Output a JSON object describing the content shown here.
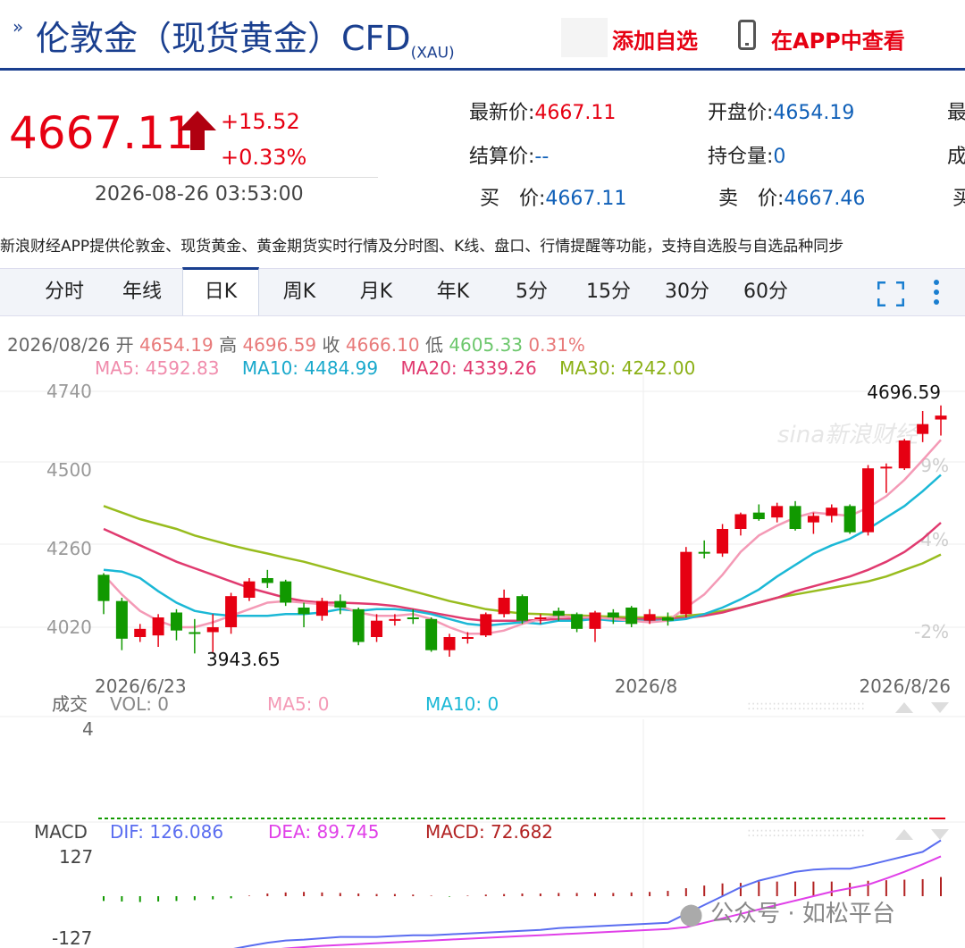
{
  "header": {
    "title": "伦敦金（现货黄金）CFD",
    "title_sub": "(XAU)",
    "add_label": "添加自选",
    "app_label": "在APP中查看"
  },
  "quote": {
    "price": "4667.11",
    "change": "+15.52",
    "change_pct": "+0.33%",
    "time": "2026-08-26 03:53:00",
    "fields": [
      {
        "k": "最新价:",
        "v": "4667.11",
        "red": true
      },
      {
        "k": "开盘价:",
        "v": "4654.19",
        "red": false
      },
      {
        "k": "最",
        "v": "",
        "red": false
      },
      {
        "k": "结算价:",
        "v": "--",
        "red": false
      },
      {
        "k": "持仓量:",
        "v": "0",
        "red": false
      },
      {
        "k": "成",
        "v": "",
        "red": false
      },
      {
        "k": "买　价:",
        "v": "4667.11",
        "red": false
      },
      {
        "k": "卖　价:",
        "v": "4667.46",
        "red": false
      },
      {
        "k": "买",
        "v": "",
        "red": false
      }
    ]
  },
  "promo": "新浪财经APP提供伦敦金、现货黄金、黄金期货实时行情及分时图、K线、盘口、行情提醒等功能，支持自选股与自选品种同步",
  "tabs": [
    "分时",
    "年线",
    "日K",
    "周K",
    "月K",
    "年K",
    "5分",
    "15分",
    "30分",
    "60分"
  ],
  "active_tab": "日K",
  "kline_info": {
    "date": "2026/08/26",
    "open_label": "开",
    "open": "4654.19",
    "high_label": "高",
    "high": "4696.59",
    "close_label": "收",
    "close": "4666.10",
    "low_label": "低",
    "low": "4605.33",
    "pct": "0.31%",
    "ma5": "MA5: 4592.83",
    "ma10": "MA10: 4484.99",
    "ma20": "MA20: 4339.26",
    "ma30": "MA30: 4242.00"
  },
  "chart_data": {
    "type": "candlestick",
    "y_ticks": [
      "4740",
      "4500",
      "4260",
      "4020"
    ],
    "right_ticks": [
      "9%",
      "4%",
      "-2%"
    ],
    "x_labels": [
      "2026/6/23",
      "2026/8",
      "2026/8/26"
    ],
    "high_label": "4696.59",
    "low_label": "3943.65",
    "candles": [
      {
        "o": 4180,
        "c": 4100,
        "h": 4185,
        "l": 4060
      },
      {
        "o": 4100,
        "c": 3985,
        "h": 4110,
        "l": 3950
      },
      {
        "o": 3990,
        "c": 4015,
        "h": 4030,
        "l": 3975
      },
      {
        "o": 3995,
        "c": 4050,
        "h": 4060,
        "l": 3960
      },
      {
        "o": 4065,
        "c": 4010,
        "h": 4075,
        "l": 3980
      },
      {
        "o": 4005,
        "c": 4000,
        "h": 4045,
        "l": 3940
      },
      {
        "o": 4005,
        "c": 4020,
        "h": 4060,
        "l": 3944
      },
      {
        "o": 4020,
        "c": 4115,
        "h": 4125,
        "l": 4000
      },
      {
        "o": 4110,
        "c": 4160,
        "h": 4170,
        "l": 4100
      },
      {
        "o": 4170,
        "c": 4155,
        "h": 4195,
        "l": 4140
      },
      {
        "o": 4160,
        "c": 4095,
        "h": 4165,
        "l": 4085
      },
      {
        "o": 4080,
        "c": 4060,
        "h": 4095,
        "l": 4020
      },
      {
        "o": 4055,
        "c": 4100,
        "h": 4110,
        "l": 4040
      },
      {
        "o": 4100,
        "c": 4080,
        "h": 4120,
        "l": 4060
      },
      {
        "o": 4075,
        "c": 3975,
        "h": 4080,
        "l": 3965
      },
      {
        "o": 3990,
        "c": 4040,
        "h": 4060,
        "l": 3975
      },
      {
        "o": 4045,
        "c": 4045,
        "h": 4060,
        "l": 4025
      },
      {
        "o": 4050,
        "c": 4045,
        "h": 4075,
        "l": 4030
      },
      {
        "o": 4045,
        "c": 3950,
        "h": 4050,
        "l": 3945
      },
      {
        "o": 3950,
        "c": 3990,
        "h": 4000,
        "l": 3930
      },
      {
        "o": 3990,
        "c": 3990,
        "h": 4005,
        "l": 3970
      },
      {
        "o": 3995,
        "c": 4060,
        "h": 4065,
        "l": 3990
      },
      {
        "o": 4060,
        "c": 4110,
        "h": 4135,
        "l": 4050
      },
      {
        "o": 4115,
        "c": 4040,
        "h": 4120,
        "l": 4030
      },
      {
        "o": 4045,
        "c": 4050,
        "h": 4060,
        "l": 4030
      },
      {
        "o": 4070,
        "c": 4055,
        "h": 4080,
        "l": 4040
      },
      {
        "o": 4060,
        "c": 4015,
        "h": 4065,
        "l": 4005
      },
      {
        "o": 4015,
        "c": 4065,
        "h": 4070,
        "l": 3975
      },
      {
        "o": 4065,
        "c": 4050,
        "h": 4075,
        "l": 4030
      },
      {
        "o": 4080,
        "c": 4030,
        "h": 4085,
        "l": 4020
      },
      {
        "o": 4040,
        "c": 4060,
        "h": 4075,
        "l": 4030
      },
      {
        "o": 4050,
        "c": 4040,
        "h": 4065,
        "l": 4025
      },
      {
        "o": 4060,
        "c": 4250,
        "h": 4265,
        "l": 4050
      },
      {
        "o": 4250,
        "c": 4245,
        "h": 4285,
        "l": 4230
      },
      {
        "o": 4245,
        "c": 4320,
        "h": 4335,
        "l": 4235
      },
      {
        "o": 4320,
        "c": 4365,
        "h": 4370,
        "l": 4300
      },
      {
        "o": 4370,
        "c": 4350,
        "h": 4395,
        "l": 4345
      },
      {
        "o": 4355,
        "c": 4390,
        "h": 4400,
        "l": 4340
      },
      {
        "o": 4390,
        "c": 4320,
        "h": 4405,
        "l": 4315
      },
      {
        "o": 4340,
        "c": 4360,
        "h": 4370,
        "l": 4305
      },
      {
        "o": 4360,
        "c": 4385,
        "h": 4395,
        "l": 4340
      },
      {
        "o": 4390,
        "c": 4310,
        "h": 4395,
        "l": 4305
      },
      {
        "o": 4310,
        "c": 4505,
        "h": 4515,
        "l": 4300
      },
      {
        "o": 4505,
        "c": 4510,
        "h": 4520,
        "l": 4430
      },
      {
        "o": 4505,
        "c": 4590,
        "h": 4595,
        "l": 4500
      },
      {
        "o": 4610,
        "c": 4640,
        "h": 4680,
        "l": 4585
      },
      {
        "o": 4654,
        "c": 4666,
        "h": 4697,
        "l": 4605
      }
    ],
    "ma5": [
      4180,
      4120,
      4070,
      4040,
      4020,
      4020,
      4035,
      4055,
      4075,
      4095,
      4100,
      4095,
      4090,
      4085,
      4065,
      4055,
      4055,
      4060,
      4045,
      4020,
      4000,
      4000,
      4010,
      4030,
      4045,
      4055,
      4050,
      4050,
      4045,
      4040,
      4035,
      4040,
      4080,
      4120,
      4180,
      4250,
      4300,
      4330,
      4355,
      4370,
      4365,
      4360,
      4385,
      4420,
      4470,
      4530,
      4592
    ],
    "ma10": [
      4195,
      4190,
      4170,
      4130,
      4095,
      4070,
      4060,
      4055,
      4055,
      4055,
      4060,
      4060,
      4065,
      4075,
      4070,
      4075,
      4075,
      4070,
      4060,
      4045,
      4030,
      4025,
      4030,
      4035,
      4030,
      4040,
      4040,
      4045,
      4040,
      4040,
      4040,
      4040,
      4045,
      4060,
      4080,
      4105,
      4135,
      4175,
      4210,
      4245,
      4270,
      4290,
      4320,
      4355,
      4390,
      4435,
      4485
    ],
    "ma20": [
      4320,
      4295,
      4270,
      4245,
      4220,
      4200,
      4180,
      4160,
      4140,
      4125,
      4110,
      4100,
      4095,
      4095,
      4093,
      4090,
      4085,
      4075,
      4065,
      4055,
      4045,
      4040,
      4040,
      4040,
      4042,
      4045,
      4045,
      4045,
      4045,
      4045,
      4045,
      4045,
      4048,
      4055,
      4065,
      4080,
      4095,
      4110,
      4130,
      4145,
      4160,
      4175,
      4195,
      4220,
      4250,
      4290,
      4339
    ],
    "ma30": [
      4390,
      4370,
      4350,
      4335,
      4320,
      4300,
      4285,
      4270,
      4257,
      4245,
      4232,
      4220,
      4205,
      4190,
      4175,
      4160,
      4145,
      4130,
      4115,
      4100,
      4088,
      4075,
      4068,
      4062,
      4060,
      4058,
      4056,
      4054,
      4052,
      4050,
      4050,
      4050,
      4055,
      4060,
      4070,
      4080,
      4095,
      4110,
      4120,
      4130,
      4140,
      4150,
      4160,
      4175,
      4195,
      4215,
      4242
    ],
    "volume": {
      "label": "成交",
      "vol": "VOL: 0",
      "ma5": "MA5: 0",
      "ma10": "MA10: 0",
      "y_tick": "4"
    },
    "macd": {
      "label": "MACD",
      "dif": "DIF: 126.086",
      "dea": "DEA: 89.745",
      "macd": "MACD: 72.682",
      "y_ticks": [
        "127",
        "-127"
      ],
      "hist": [
        -18,
        -20,
        -22,
        -20,
        -18,
        -15,
        -12,
        -8,
        2,
        10,
        14,
        16,
        14,
        12,
        10,
        8,
        8,
        6,
        2,
        -2,
        2,
        6,
        8,
        10,
        10,
        12,
        12,
        12,
        12,
        14,
        16,
        20,
        30,
        40,
        48,
        50,
        55,
        55,
        55,
        55,
        55,
        50,
        58,
        60,
        62,
        64,
        72
      ],
      "dif_vals": [
        -120,
        -125,
        -130,
        -132,
        -134,
        -135,
        -130,
        -120,
        -112,
        -105,
        -100,
        -98,
        -95,
        -92,
        -92,
        -92,
        -90,
        -88,
        -88,
        -86,
        -84,
        -82,
        -80,
        -78,
        -76,
        -72,
        -70,
        -68,
        -66,
        -64,
        -62,
        -60,
        -40,
        -20,
        0,
        20,
        35,
        45,
        55,
        60,
        62,
        62,
        70,
        80,
        90,
        100,
        126
      ],
      "dea_vals": [
        -130,
        -132,
        -135,
        -136,
        -137,
        -138,
        -136,
        -132,
        -128,
        -122,
        -118,
        -115,
        -112,
        -110,
        -108,
        -106,
        -104,
        -102,
        -100,
        -98,
        -96,
        -94,
        -92,
        -90,
        -88,
        -86,
        -84,
        -82,
        -80,
        -78,
        -76,
        -74,
        -70,
        -60,
        -50,
        -40,
        -30,
        -20,
        -10,
        0,
        10,
        18,
        26,
        40,
        55,
        72,
        90
      ]
    }
  },
  "colors": {
    "up": "#e60012",
    "down": "#119900",
    "ma5": "#f49ab6",
    "ma10": "#1bb8d6",
    "ma20": "#e03a6f",
    "ma30": "#98bc1e",
    "dif": "#5a6df0",
    "dea": "#e040e8",
    "macd": "#b22222"
  },
  "watermark": {
    "chart": "sina新浪财经",
    "footer": "公众号 · 如松平台"
  }
}
